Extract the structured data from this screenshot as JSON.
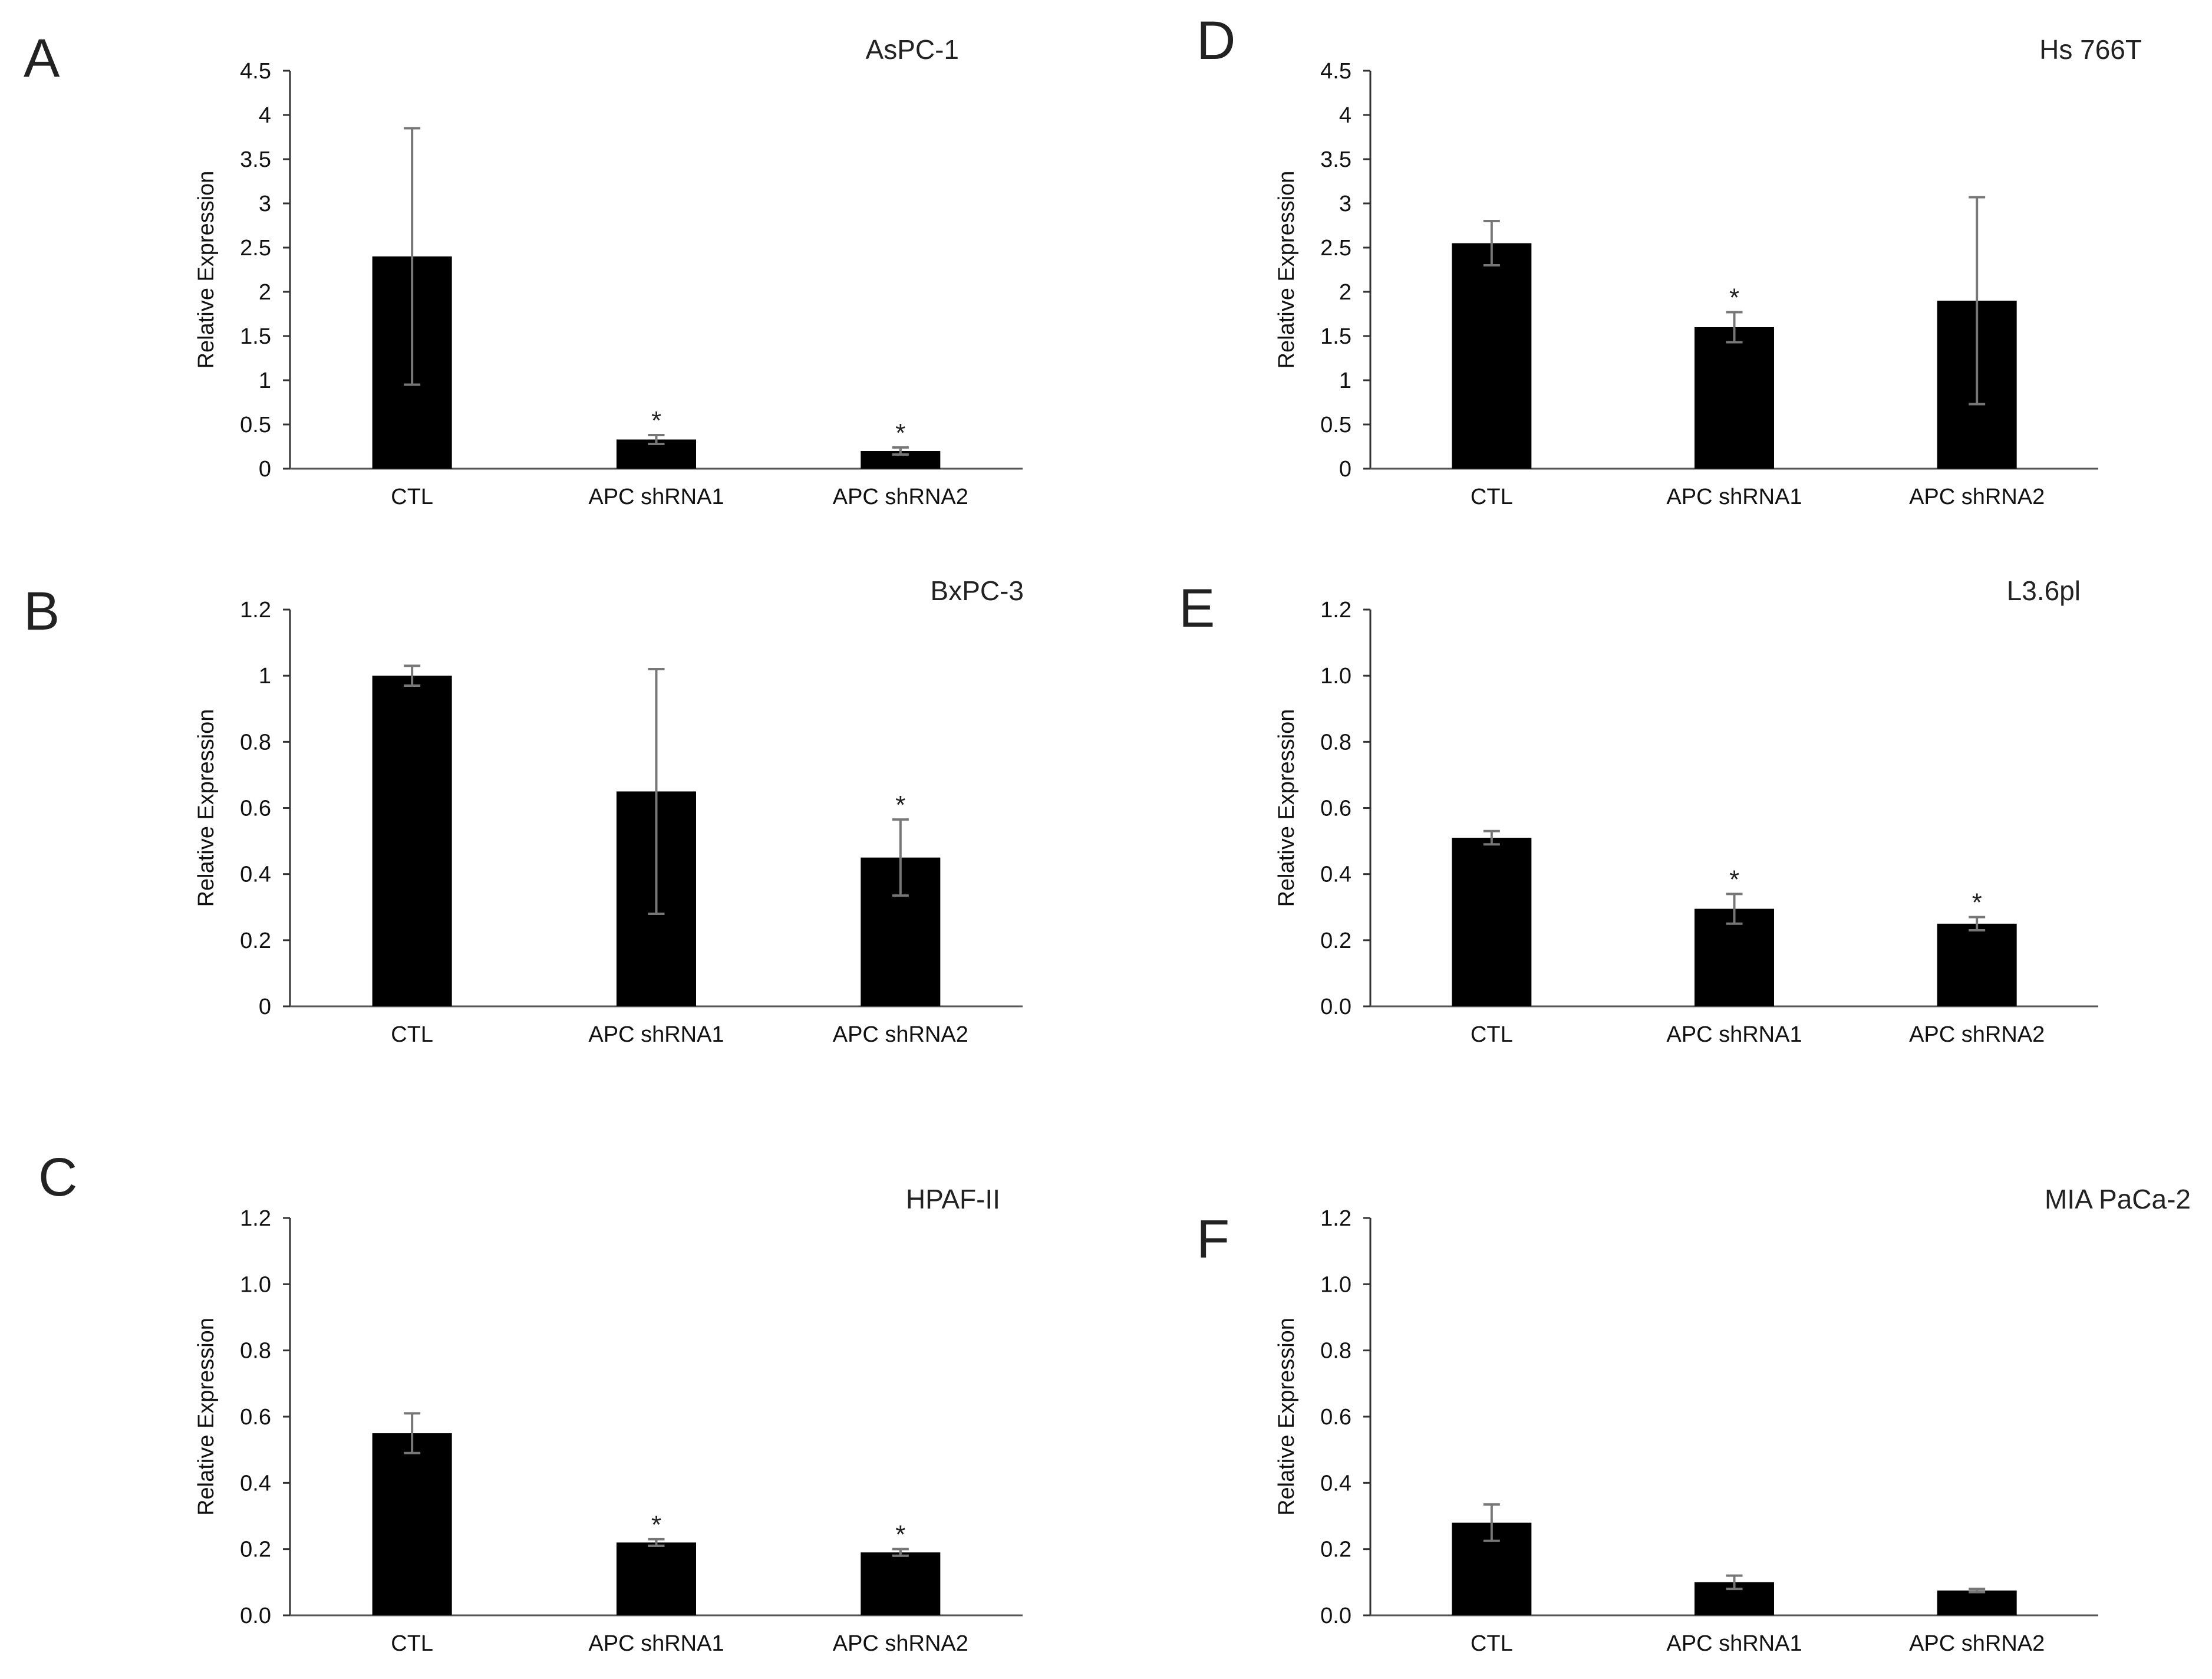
{
  "chart_data": [
    {
      "panel": "A",
      "type": "bar",
      "title": "AsPC-1",
      "xlabel": "",
      "ylabel": "Relative Expression",
      "categories": [
        "CTL",
        "APC shRNA1",
        "APC shRNA2"
      ],
      "values": [
        2.4,
        0.33,
        0.2
      ],
      "errors": [
        1.45,
        0.05,
        0.04
      ],
      "significance": [
        "",
        "*",
        "*"
      ],
      "ylim": [
        0,
        4.5
      ],
      "yticks": [
        "0",
        "0.5",
        "1",
        "1.5",
        "2",
        "2.5",
        "3",
        "3.5",
        "4",
        "4.5"
      ]
    },
    {
      "panel": "B",
      "type": "bar",
      "title": "BxPC-3",
      "xlabel": "",
      "ylabel": "Relative Expression",
      "categories": [
        "CTL",
        "APC shRNA1",
        "APC shRNA2"
      ],
      "values": [
        1.0,
        0.65,
        0.45
      ],
      "errors": [
        0.03,
        0.37,
        0.115
      ],
      "significance": [
        "",
        "",
        "*"
      ],
      "ylim": [
        0,
        1.2
      ],
      "yticks": [
        "0",
        "0.2",
        "0.4",
        "0.6",
        "0.8",
        "1",
        "1.2"
      ]
    },
    {
      "panel": "C",
      "type": "bar",
      "title": "HPAF-II",
      "xlabel": "",
      "ylabel": "Relative Expression",
      "categories": [
        "CTL",
        "APC shRNA1",
        "APC shRNA2"
      ],
      "values": [
        0.55,
        0.22,
        0.19
      ],
      "errors": [
        0.06,
        0.01,
        0.01
      ],
      "significance": [
        "",
        "*",
        "*"
      ],
      "ylim": [
        0,
        1.2
      ],
      "yticks": [
        "0.0",
        "0.2",
        "0.4",
        "0.6",
        "0.8",
        "1.0",
        "1.2"
      ]
    },
    {
      "panel": "D",
      "type": "bar",
      "title": "Hs 766T",
      "xlabel": "",
      "ylabel": "Relative Expression",
      "categories": [
        "CTL",
        "APC shRNA1",
        "APC shRNA2"
      ],
      "values": [
        2.55,
        1.6,
        1.9
      ],
      "errors": [
        0.25,
        0.17,
        1.17
      ],
      "significance": [
        "",
        "*",
        ""
      ],
      "ylim": [
        0,
        4.5
      ],
      "yticks": [
        "0",
        "0.5",
        "1",
        "1.5",
        "2",
        "2.5",
        "3",
        "3.5",
        "4",
        "4.5"
      ]
    },
    {
      "panel": "E",
      "type": "bar",
      "title": "L3.6pl",
      "xlabel": "",
      "ylabel": "Relative Expression",
      "categories": [
        "CTL",
        "APC shRNA1",
        "APC shRNA2"
      ],
      "values": [
        0.51,
        0.295,
        0.25
      ],
      "errors": [
        0.02,
        0.045,
        0.02
      ],
      "significance": [
        "",
        "*",
        "*"
      ],
      "ylim": [
        0,
        1.2
      ],
      "yticks": [
        "0.0",
        "0.2",
        "0.4",
        "0.6",
        "0.8",
        "1.0",
        "1.2"
      ]
    },
    {
      "panel": "F",
      "type": "bar",
      "title": "MIA PaCa-2",
      "xlabel": "",
      "ylabel": "Relative Expression",
      "categories": [
        "CTL",
        "APC shRNA1",
        "APC shRNA2"
      ],
      "values": [
        0.28,
        0.1,
        0.075
      ],
      "errors": [
        0.055,
        0.02,
        0.005
      ],
      "significance": [
        "",
        "",
        ""
      ],
      "ylim": [
        0,
        1.2
      ],
      "yticks": [
        "0.0",
        "0.2",
        "0.4",
        "0.6",
        "0.8",
        "1.0",
        "1.2"
      ]
    }
  ]
}
